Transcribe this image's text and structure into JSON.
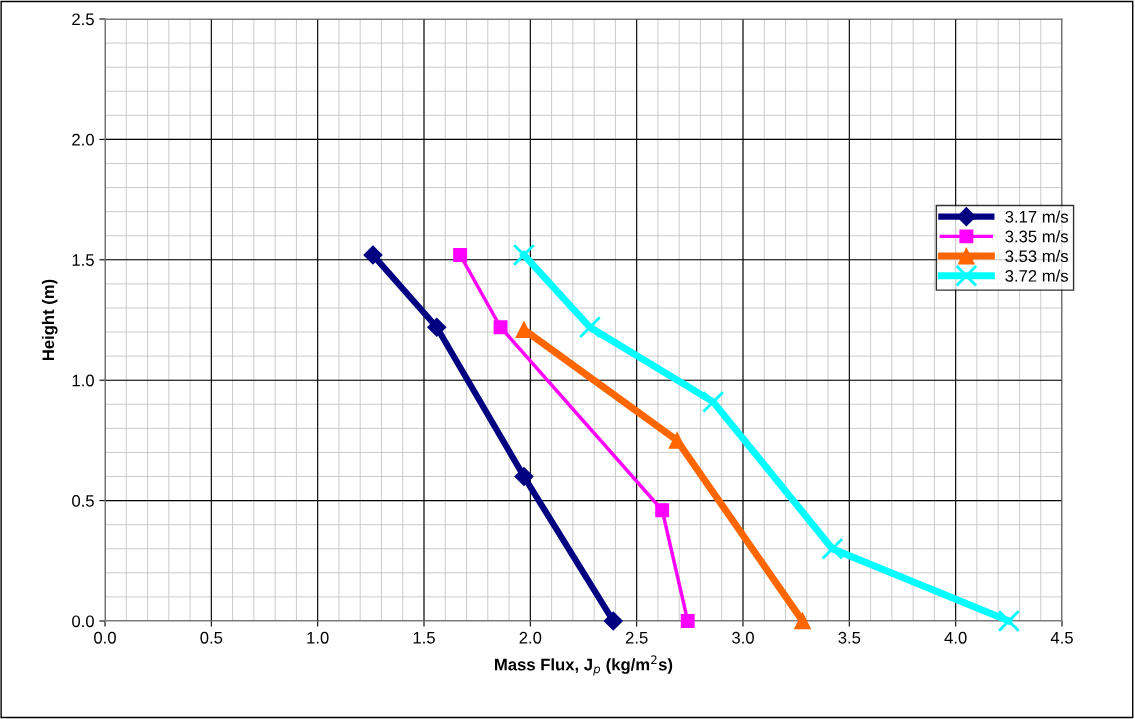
{
  "chart_data": {
    "type": "line",
    "xlabel": "Mass Flux, J$_{p}$ (kg/m$^{2}$s)",
    "ylabel": "Height (m)",
    "xlim": [
      0,
      4.5
    ],
    "xticks": [
      {
        "value": 0,
        "label": "0.0"
      },
      0.5,
      {
        "value": 1,
        "label": "1.0"
      },
      1.5,
      {
        "value": 2,
        "label": "2.0"
      },
      2.5,
      {
        "value": 3,
        "label": "3.0"
      },
      3.5,
      {
        "value": 4,
        "label": "4.0"
      },
      4.5
    ],
    "ylim": [
      0,
      2.5
    ],
    "yticks": [
      {
        "value": 0,
        "label": "0.0"
      },
      0.5,
      {
        "value": 1,
        "label": "1.0"
      },
      1.5,
      {
        "value": 2,
        "label": "2.0"
      },
      2.5
    ],
    "grid": true,
    "legend": "right",
    "series": [
      {
        "name": "3.17 m/s",
        "color": "#000080",
        "marker": "diamond",
        "x": [
          1.26,
          1.56,
          1.97,
          2.39
        ],
        "values": [
          1.52,
          1.22,
          0.6,
          0
        ]
      },
      {
        "name": "3.35 m/s",
        "color": "#ff00ff",
        "marker": "square",
        "x": [
          1.67,
          1.86,
          2.62,
          2.74
        ],
        "values": [
          1.52,
          1.22,
          0.46,
          0
        ]
      },
      {
        "name": "3.53 m/s",
        "color": "#ff6600",
        "marker": "triangle",
        "x": [
          1.97,
          2.69,
          3.28
        ],
        "values": [
          1.21,
          0.75,
          0
        ]
      },
      {
        "name": "3.72 m/s",
        "color": "#00ffff",
        "marker": "cross",
        "x": [
          1.97,
          2.28,
          2.86,
          3.42,
          4.25
        ],
        "values": [
          1.52,
          1.22,
          0.91,
          0.3,
          0
        ]
      }
    ]
  }
}
